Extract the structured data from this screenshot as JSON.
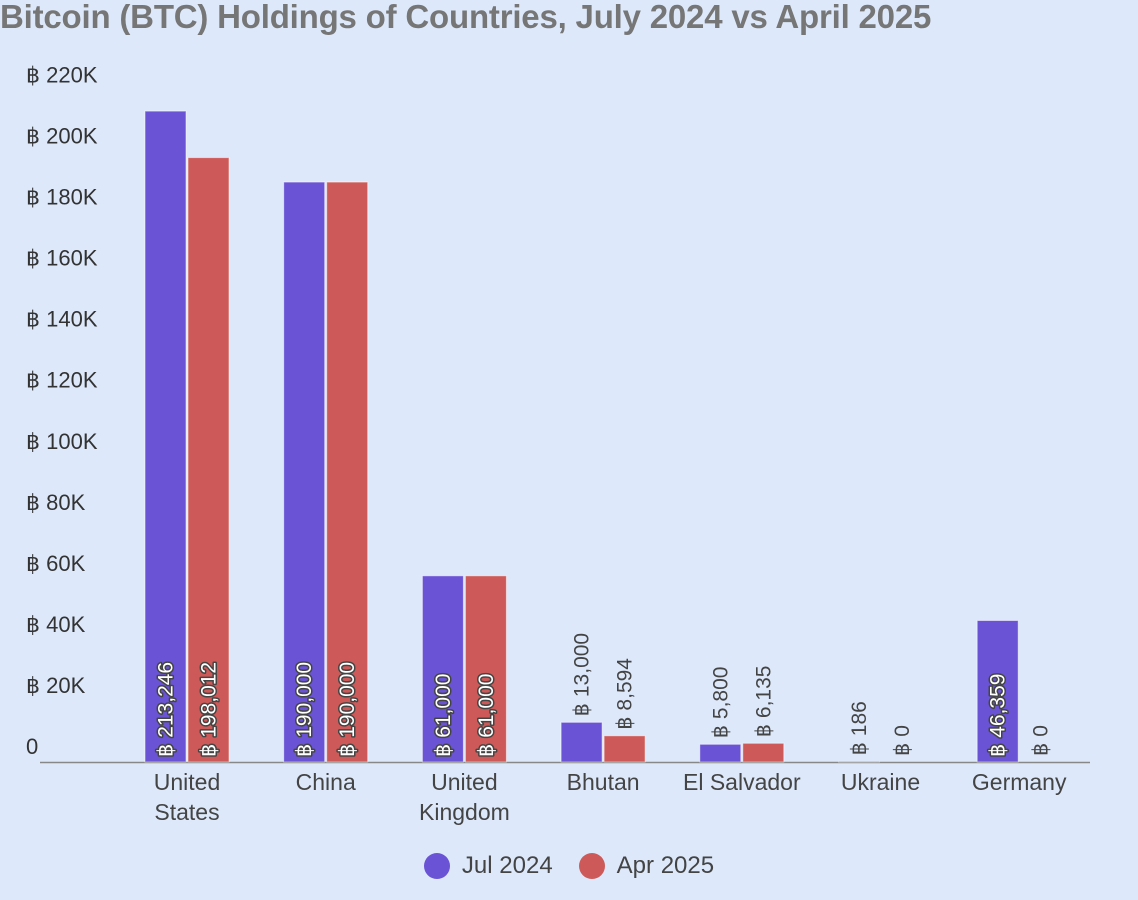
{
  "chart_data": {
    "type": "bar",
    "title": "Bitcoin (BTC) Holdings of Countries, July 2024 vs April 2025",
    "xlabel": "",
    "ylabel": "",
    "categories": [
      [
        "United",
        "States"
      ],
      [
        "China"
      ],
      [
        "United",
        "Kingdom"
      ],
      [
        "Bhutan"
      ],
      [
        "El Salvador"
      ],
      [
        "Ukraine"
      ],
      [
        "Germany"
      ]
    ],
    "series": [
      {
        "name": "Jul 2024",
        "color": "#6a53d5",
        "values": [
          213246,
          190000,
          61000,
          13000,
          5800,
          186,
          46359
        ],
        "labels": [
          "฿ 213,246",
          "฿ 190,000",
          "฿ 61,000",
          "฿ 13,000",
          "฿ 5,800",
          "฿ 186",
          "฿ 46,359"
        ]
      },
      {
        "name": "Apr 2025",
        "color": "#cd5a58",
        "values": [
          198012,
          190000,
          61000,
          8594,
          6135,
          0,
          0
        ],
        "labels": [
          "฿ 198,012",
          "฿ 190,000",
          "฿ 61,000",
          "฿ 8,594",
          "฿ 6,135",
          "฿ 0",
          "฿ 0"
        ]
      }
    ],
    "ylim": [
      0,
      220000
    ],
    "yticks": [
      0,
      20000,
      40000,
      60000,
      80000,
      100000,
      120000,
      140000,
      160000,
      180000,
      200000,
      220000
    ],
    "ytick_labels": [
      "0",
      "฿ 20K",
      "฿ 40K",
      "฿ 60K",
      "฿ 80K",
      "฿ 100K",
      "฿ 120K",
      "฿ 140K",
      "฿ 160K",
      "฿ 180K",
      "฿ 200K",
      "฿ 220K"
    ],
    "grid": false,
    "legend": "bottom-center"
  }
}
